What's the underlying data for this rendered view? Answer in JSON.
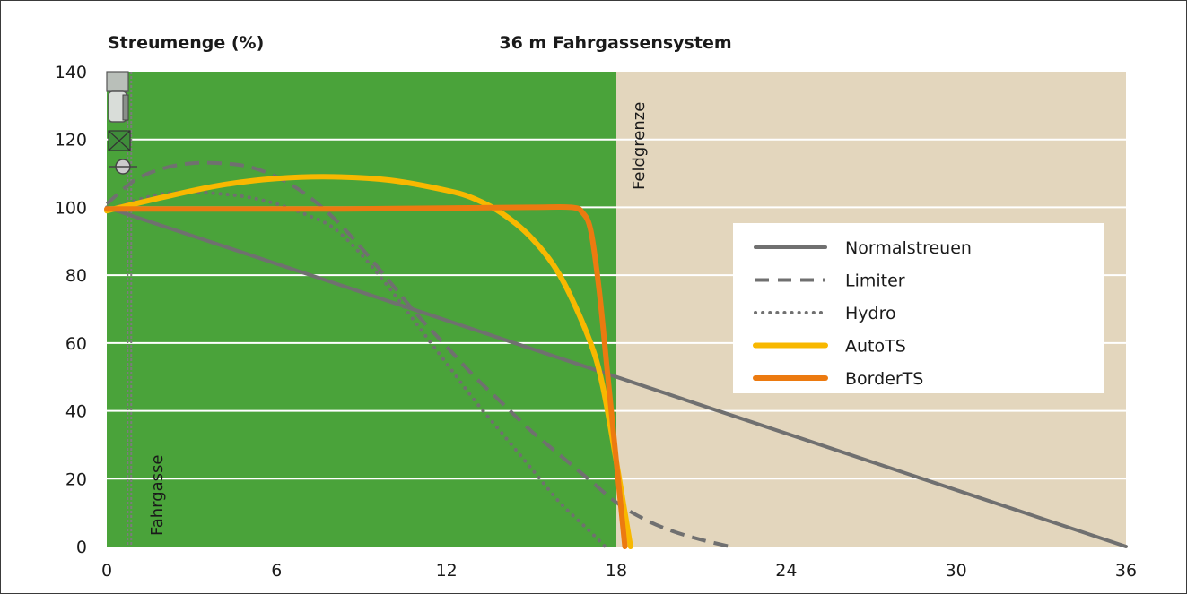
{
  "chart_data": {
    "type": "line",
    "title": "36 m Fahrgassensystem",
    "ylabel": "Streumenge (%)",
    "xlabel": "",
    "xlim": [
      0,
      36
    ],
    "ylim": [
      0,
      140
    ],
    "xticks": [
      "0",
      "6",
      "12",
      "18",
      "24",
      "30",
      "36"
    ],
    "yticks": [
      "0",
      "20",
      "40",
      "60",
      "80",
      "100",
      "120",
      "140"
    ],
    "grid": "horizontal",
    "legend_position": "right",
    "regions": [
      {
        "label": "Fahrgasse",
        "x_from": 0,
        "x_to": 18,
        "color": "#4aa33a"
      },
      {
        "label": "Feldgrenze",
        "x_from": 18,
        "x_to": 36,
        "color": "#e3d6bd"
      }
    ],
    "series": [
      {
        "name": "Normalstreuen",
        "style": "solid",
        "color": "#707070",
        "points": [
          [
            0,
            100
          ],
          [
            36,
            0
          ]
        ]
      },
      {
        "name": "Limiter",
        "style": "dashed",
        "color": "#707070",
        "points": [
          [
            0,
            101
          ],
          [
            1,
            108
          ],
          [
            2,
            111.5
          ],
          [
            3,
            113
          ],
          [
            4,
            113
          ],
          [
            5,
            112
          ],
          [
            6,
            109
          ],
          [
            7,
            104
          ],
          [
            8,
            97
          ],
          [
            9,
            88
          ],
          [
            10,
            78
          ],
          [
            11,
            68
          ],
          [
            12,
            59
          ],
          [
            13,
            50
          ],
          [
            14,
            42
          ],
          [
            15,
            34
          ],
          [
            16,
            27
          ],
          [
            17,
            20
          ],
          [
            18,
            13
          ],
          [
            19,
            8
          ],
          [
            20,
            4.5
          ],
          [
            21,
            2
          ],
          [
            22,
            0
          ]
        ]
      },
      {
        "name": "Hydro",
        "style": "dotted",
        "color": "#707070",
        "points": [
          [
            0,
            99
          ],
          [
            1,
            102
          ],
          [
            2,
            104
          ],
          [
            3,
            104.5
          ],
          [
            4,
            104
          ],
          [
            5,
            103
          ],
          [
            6,
            101
          ],
          [
            7,
            98
          ],
          [
            8,
            94
          ],
          [
            9,
            86
          ],
          [
            10,
            76
          ],
          [
            11,
            65
          ],
          [
            12,
            54
          ],
          [
            13,
            43
          ],
          [
            14,
            33
          ],
          [
            15,
            23
          ],
          [
            16,
            13
          ],
          [
            17,
            5
          ],
          [
            17.6,
            0
          ]
        ]
      },
      {
        "name": "AutoTS",
        "style": "solid",
        "color": "#f8b800",
        "points": [
          [
            0,
            99
          ],
          [
            2,
            103
          ],
          [
            4,
            106.5
          ],
          [
            6,
            108.5
          ],
          [
            8,
            109
          ],
          [
            10,
            108
          ],
          [
            12,
            105
          ],
          [
            13,
            102.5
          ],
          [
            14,
            98
          ],
          [
            15,
            91
          ],
          [
            16,
            80
          ],
          [
            17,
            62
          ],
          [
            17.5,
            48
          ],
          [
            18,
            25
          ],
          [
            18.3,
            10
          ],
          [
            18.5,
            0
          ]
        ]
      },
      {
        "name": "BorderTS",
        "style": "solid",
        "color": "#ec7a10",
        "points": [
          [
            0,
            99.5
          ],
          [
            4,
            99.5
          ],
          [
            8,
            99.5
          ],
          [
            12,
            99.8
          ],
          [
            15,
            100
          ],
          [
            16.4,
            100
          ],
          [
            16.8,
            98.5
          ],
          [
            17.1,
            93
          ],
          [
            17.4,
            75
          ],
          [
            17.7,
            50
          ],
          [
            18.0,
            25
          ],
          [
            18.3,
            0
          ]
        ]
      }
    ]
  }
}
